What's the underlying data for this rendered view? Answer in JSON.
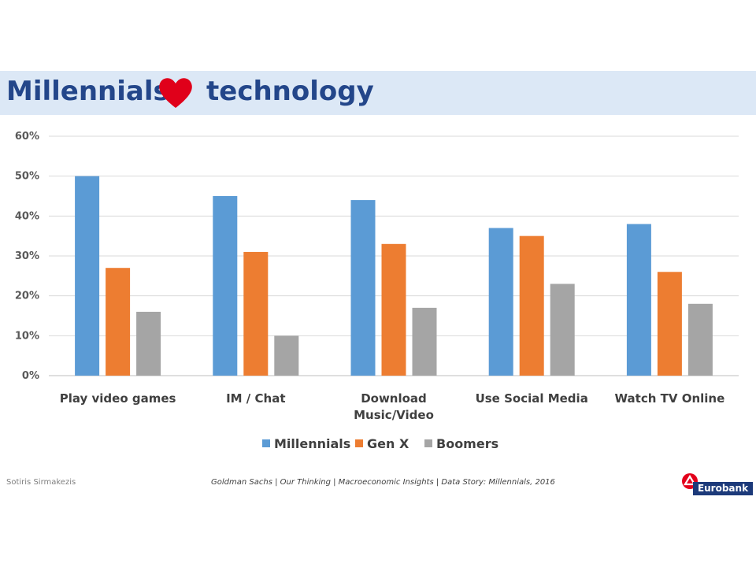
{
  "slide": {
    "title_part1": "Millennials",
    "title_part2": "technology",
    "heart_icon_color": "#e0001a",
    "band_color": "#dce8f6"
  },
  "footer": {
    "author": "Sotiris Sirmakezis",
    "source": "Goldman Sachs | Our Thinking | Macroeconomic Insights | Data Story: Millennials, 2016",
    "logo_text": "Eurobank"
  },
  "chart_data": {
    "type": "bar",
    "categories": [
      [
        "Play video games"
      ],
      [
        "IM / Chat"
      ],
      [
        "Download",
        "Music/Video"
      ],
      [
        "Use Social Media"
      ],
      [
        "Watch TV Online"
      ]
    ],
    "series": [
      {
        "name": "Millennials",
        "color": "#5b9bd5",
        "values": [
          50,
          45,
          44,
          37,
          38
        ]
      },
      {
        "name": "Gen X",
        "color": "#ed7d31",
        "values": [
          27,
          31,
          33,
          35,
          26
        ]
      },
      {
        "name": "Boomers",
        "color": "#a5a5a5",
        "values": [
          16,
          10,
          17,
          23,
          18
        ]
      }
    ],
    "y_ticks": [
      "0%",
      "10%",
      "20%",
      "30%",
      "40%",
      "50%",
      "60%"
    ],
    "ylim": [
      0,
      60
    ],
    "grid": true,
    "legend_position": "bottom"
  }
}
